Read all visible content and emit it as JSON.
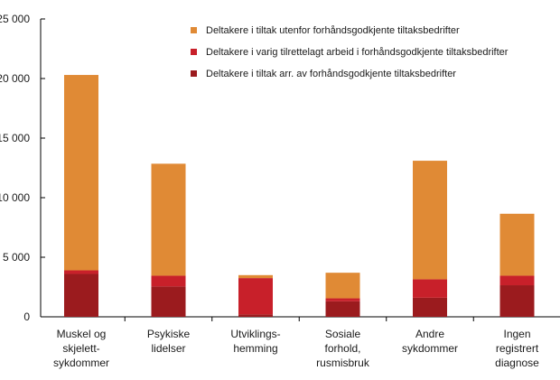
{
  "chart_data": {
    "type": "bar",
    "stacked": true,
    "categories": [
      [
        "Muskel og",
        "skjelett-",
        "sykdommer"
      ],
      [
        "Psykiske",
        "lidelser"
      ],
      [
        "Utviklings-",
        "hemming"
      ],
      [
        "Sosiale",
        "forhold,",
        "rusmisbruk"
      ],
      [
        "Andre",
        "sykdommer"
      ],
      [
        "Ingen",
        "registrert",
        "diagnose"
      ]
    ],
    "series": [
      {
        "name": "Deltakere i tiltak arr. av forhåndsgodkjente tiltaksbedrifter",
        "color": "#9b1b1e",
        "values": [
          3600,
          2550,
          200,
          1300,
          1600,
          2650
        ]
      },
      {
        "name": "Deltakere i varig tilrettelagt arbeid i forhåndsgodkjente tiltaksbedrifter",
        "color": "#c8202a",
        "values": [
          300,
          900,
          3050,
          250,
          1550,
          800
        ]
      },
      {
        "name": "Deltakere i tiltak utenfor forhåndsgodkjente tiltaksbedrifter",
        "color": "#e08a35",
        "values": [
          16400,
          9400,
          250,
          2150,
          9950,
          5200
        ]
      }
    ],
    "legend_order": [
      2,
      1,
      0
    ],
    "yticks": [
      "0",
      "5 000",
      "10 000",
      "15 000",
      "20 000",
      "25 000"
    ],
    "ytick_values": [
      0,
      5000,
      10000,
      15000,
      20000,
      25000
    ],
    "ylim": [
      0,
      25000
    ],
    "grid": false,
    "legend": "top-right",
    "title": "",
    "xlabel": "",
    "ylabel": ""
  }
}
